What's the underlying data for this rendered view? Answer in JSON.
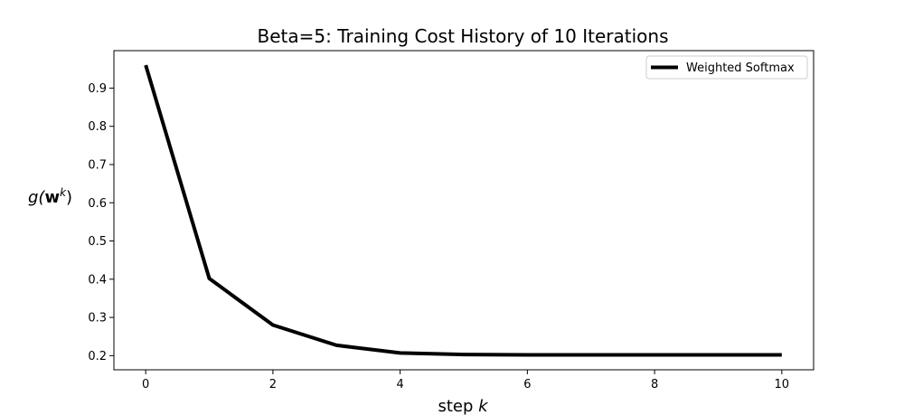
{
  "chart_data": {
    "type": "line",
    "title": "Beta=5: Training Cost History of 10 Iterations",
    "xlabel": {
      "prefix": "step ",
      "var": "k"
    },
    "ylabel": {
      "fn": "g(",
      "vec": "w",
      "sup": "k",
      "close": ")"
    },
    "xlim": [
      -0.5,
      10.5
    ],
    "ylim": [
      0.163,
      0.998
    ],
    "xticks": [
      0,
      2,
      4,
      6,
      8,
      10
    ],
    "yticks": [
      0.2,
      0.3,
      0.4,
      0.5,
      0.6,
      0.7,
      0.8,
      0.9
    ],
    "grid": false,
    "legend_position": "top-right",
    "series": [
      {
        "name": "Weighted Softmax",
        "color": "#000000",
        "x": [
          0,
          1,
          2,
          3,
          4,
          5,
          6,
          7,
          8,
          9,
          10
        ],
        "y": [
          0.96,
          0.402,
          0.28,
          0.227,
          0.207,
          0.203,
          0.202,
          0.202,
          0.202,
          0.202,
          0.202
        ]
      }
    ]
  }
}
